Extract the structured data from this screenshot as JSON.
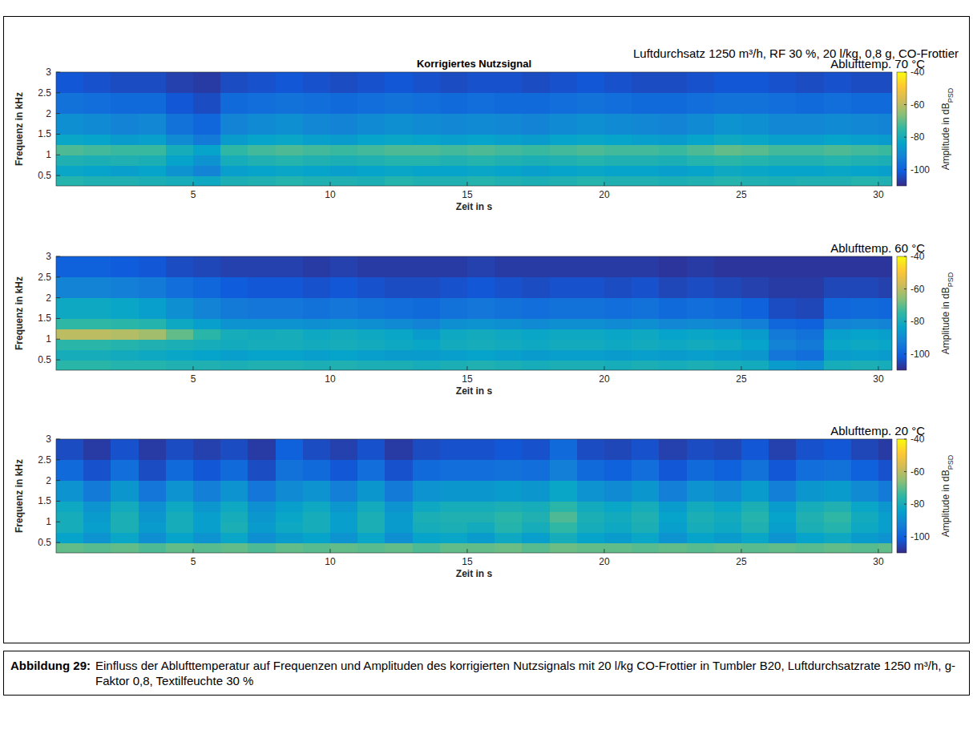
{
  "annotation": "Luftdurchsatz 1250 m³/h, RF 30 %, 20 l/kg, 0,8 g, CO-Frottier",
  "caption": {
    "label": "Abbildung 29:",
    "text": "Einfluss der Ablufttemperatur auf Frequenzen und Amplituden des korrigierten Nutzsignals mit 20 l/kg CO-Frottier in Tumbler B20, Luftdurchsatzrate 1250 m³/h, g-Faktor 0,8, Textil­feuchte 30 %"
  },
  "chart_data": [
    {
      "type": "heatmap",
      "title": "Korrigiertes Nutzsignal",
      "subtitle": "Ablufttemp. 70 °C",
      "x_label": "Zeit in s",
      "y_label": "Frequenz in kHz",
      "xlim": [
        0,
        30.5
      ],
      "ylim": [
        0.25,
        3
      ],
      "xticks": [
        5,
        10,
        15,
        20,
        25,
        30
      ],
      "yticks": [
        0.5,
        1,
        1.5,
        2,
        2.5,
        3
      ],
      "x_bins": [
        0,
        1,
        2,
        3,
        4,
        5,
        6,
        7,
        8,
        9,
        10,
        11,
        12,
        13,
        14,
        15,
        16,
        17,
        18,
        19,
        20,
        21,
        22,
        23,
        24,
        25,
        26,
        27,
        28,
        29,
        30,
        30.5
      ],
      "y_bins": [
        0.25,
        0.5,
        0.75,
        1.0,
        1.25,
        1.5,
        2.0,
        2.5,
        3.0
      ],
      "values": [
        [
          -77,
          -78,
          -78,
          -79,
          -80,
          -82,
          -79,
          -78,
          -77,
          -78,
          -78,
          -79,
          -77,
          -78,
          -78,
          -77,
          -78,
          -79,
          -78,
          -77,
          -78,
          -78,
          -79,
          -78,
          -77,
          -78,
          -79,
          -78,
          -78,
          -77,
          -78
        ],
        [
          -83,
          -84,
          -85,
          -84,
          -88,
          -92,
          -85,
          -84,
          -83,
          -84,
          -85,
          -84,
          -83,
          -84,
          -84,
          -83,
          -84,
          -85,
          -84,
          -83,
          -84,
          -84,
          -85,
          -84,
          -82,
          -83,
          -84,
          -84,
          -83,
          -84,
          -85
        ],
        [
          -78,
          -79,
          -78,
          -79,
          -84,
          -88,
          -80,
          -78,
          -77,
          -78,
          -79,
          -78,
          -77,
          -77,
          -78,
          -77,
          -78,
          -79,
          -78,
          -77,
          -78,
          -78,
          -79,
          -77,
          -76,
          -77,
          -78,
          -78,
          -77,
          -78,
          -79
        ],
        [
          -72,
          -73,
          -74,
          -74,
          -80,
          -84,
          -75,
          -73,
          -72,
          -73,
          -74,
          -73,
          -72,
          -72,
          -73,
          -72,
          -73,
          -74,
          -73,
          -72,
          -73,
          -73,
          -74,
          -72,
          -70,
          -71,
          -73,
          -73,
          -72,
          -73,
          -74
        ],
        [
          -83,
          -84,
          -86,
          -85,
          -90,
          -94,
          -86,
          -84,
          -83,
          -85,
          -86,
          -84,
          -83,
          -84,
          -85,
          -84,
          -85,
          -86,
          -84,
          -83,
          -84,
          -85,
          -86,
          -84,
          -82,
          -83,
          -85,
          -85,
          -84,
          -85,
          -86
        ],
        [
          -89,
          -90,
          -92,
          -91,
          -96,
          -99,
          -92,
          -90,
          -89,
          -91,
          -92,
          -90,
          -89,
          -90,
          -91,
          -90,
          -91,
          -92,
          -90,
          -89,
          -90,
          -91,
          -92,
          -90,
          -88,
          -89,
          -91,
          -91,
          -90,
          -91,
          -92
        ],
        [
          -96,
          -97,
          -98,
          -98,
          -102,
          -104,
          -98,
          -97,
          -96,
          -97,
          -98,
          -97,
          -96,
          -97,
          -98,
          -97,
          -98,
          -98,
          -97,
          -96,
          -97,
          -98,
          -98,
          -97,
          -96,
          -96,
          -97,
          -98,
          -97,
          -98,
          -98
        ],
        [
          -102,
          -103,
          -104,
          -104,
          -106,
          -107,
          -104,
          -103,
          -102,
          -103,
          -104,
          -103,
          -102,
          -103,
          -104,
          -103,
          -103,
          -104,
          -103,
          -102,
          -103,
          -104,
          -104,
          -103,
          -102,
          -102,
          -103,
          -104,
          -103,
          -104,
          -104
        ]
      ],
      "colorbar": {
        "range": [
          -110,
          -40
        ],
        "ticks": [
          -40,
          -60,
          -80,
          -100
        ],
        "label": "Amplitude in dB",
        "label_subscript": "PSD"
      }
    },
    {
      "type": "heatmap",
      "subtitle": "Ablufttemp. 60 °C",
      "x_label": "Zeit in s",
      "y_label": "Frequenz in kHz",
      "xlim": [
        0,
        30.5
      ],
      "ylim": [
        0.25,
        3
      ],
      "xticks": [
        5,
        10,
        15,
        20,
        25,
        30
      ],
      "yticks": [
        0.5,
        1,
        1.5,
        2,
        2.5,
        3
      ],
      "x_bins": [
        0,
        1,
        2,
        3,
        4,
        5,
        6,
        7,
        8,
        9,
        10,
        11,
        12,
        13,
        14,
        15,
        16,
        17,
        18,
        19,
        20,
        21,
        22,
        23,
        24,
        25,
        26,
        27,
        28,
        29,
        30,
        30.5
      ],
      "y_bins": [
        0.25,
        0.5,
        0.75,
        1.0,
        1.25,
        1.5,
        2.0,
        2.5,
        3.0
      ],
      "values": [
        [
          -76,
          -76,
          -77,
          -77,
          -78,
          -78,
          -79,
          -78,
          -78,
          -79,
          -78,
          -79,
          -79,
          -80,
          -79,
          -78,
          -79,
          -80,
          -79,
          -79,
          -80,
          -79,
          -80,
          -79,
          -80,
          -81,
          -86,
          -88,
          -80,
          -79,
          -80
        ],
        [
          -80,
          -80,
          -81,
          -82,
          -83,
          -84,
          -85,
          -84,
          -84,
          -85,
          -84,
          -85,
          -86,
          -86,
          -85,
          -84,
          -85,
          -86,
          -85,
          -85,
          -86,
          -85,
          -86,
          -85,
          -86,
          -87,
          -95,
          -97,
          -86,
          -85,
          -86
        ],
        [
          -76,
          -76,
          -77,
          -78,
          -79,
          -80,
          -81,
          -80,
          -80,
          -81,
          -80,
          -81,
          -82,
          -83,
          -81,
          -80,
          -81,
          -82,
          -81,
          -81,
          -82,
          -81,
          -82,
          -81,
          -82,
          -84,
          -92,
          -94,
          -83,
          -82,
          -83
        ],
        [
          -60,
          -60,
          -61,
          -63,
          -70,
          -76,
          -80,
          -81,
          -80,
          -82,
          -81,
          -82,
          -83,
          -86,
          -82,
          -81,
          -82,
          -83,
          -82,
          -82,
          -83,
          -82,
          -84,
          -83,
          -84,
          -86,
          -94,
          -96,
          -85,
          -84,
          -85
        ],
        [
          -75,
          -75,
          -76,
          -77,
          -82,
          -85,
          -88,
          -88,
          -88,
          -89,
          -88,
          -89,
          -90,
          -92,
          -89,
          -88,
          -89,
          -90,
          -89,
          -89,
          -90,
          -89,
          -91,
          -90,
          -91,
          -93,
          -99,
          -100,
          -92,
          -91,
          -92
        ],
        [
          -82,
          -82,
          -83,
          -85,
          -89,
          -92,
          -94,
          -95,
          -95,
          -96,
          -95,
          -96,
          -97,
          -98,
          -96,
          -95,
          -96,
          -97,
          -96,
          -96,
          -97,
          -96,
          -98,
          -97,
          -98,
          -100,
          -104,
          -105,
          -99,
          -98,
          -99
        ],
        [
          -92,
          -92,
          -93,
          -94,
          -97,
          -99,
          -101,
          -102,
          -102,
          -103,
          -102,
          -103,
          -104,
          -104,
          -103,
          -102,
          -103,
          -104,
          -103,
          -103,
          -104,
          -103,
          -105,
          -104,
          -105,
          -106,
          -107,
          -107,
          -105,
          -105,
          -106
        ],
        [
          -100,
          -100,
          -101,
          -102,
          -104,
          -105,
          -106,
          -106,
          -106,
          -107,
          -106,
          -107,
          -107,
          -107,
          -107,
          -106,
          -107,
          -107,
          -107,
          -107,
          -107,
          -107,
          -108,
          -107,
          -108,
          -108,
          -108,
          -108,
          -108,
          -108,
          -108
        ]
      ],
      "colorbar": {
        "range": [
          -110,
          -40
        ],
        "ticks": [
          -40,
          -60,
          -80,
          -100
        ],
        "label": "Amplitude in dB",
        "label_subscript": "PSD"
      }
    },
    {
      "type": "heatmap",
      "subtitle": "Ablufttemp. 20 °C",
      "x_label": "Zeit in s",
      "y_label": "Frequenz in kHz",
      "xlim": [
        0,
        30.5
      ],
      "ylim": [
        0.25,
        3
      ],
      "xticks": [
        5,
        10,
        15,
        20,
        25,
        30
      ],
      "yticks": [
        0.5,
        1,
        1.5,
        2,
        2.5,
        3
      ],
      "x_bins": [
        0,
        1,
        2,
        3,
        4,
        5,
        6,
        7,
        8,
        9,
        10,
        11,
        12,
        13,
        14,
        15,
        16,
        17,
        18,
        19,
        20,
        21,
        22,
        23,
        24,
        25,
        26,
        27,
        28,
        29,
        30,
        30.5
      ],
      "y_bins": [
        0.25,
        0.5,
        0.75,
        1.0,
        1.25,
        1.5,
        2.0,
        2.5,
        3.0
      ],
      "values": [
        [
          -70,
          -71,
          -70,
          -72,
          -70,
          -71,
          -70,
          -72,
          -70,
          -71,
          -70,
          -71,
          -70,
          -72,
          -70,
          -70,
          -69,
          -71,
          -69,
          -70,
          -70,
          -71,
          -70,
          -71,
          -70,
          -71,
          -70,
          -71,
          -70,
          -71,
          -70
        ],
        [
          -84,
          -88,
          -83,
          -89,
          -84,
          -88,
          -83,
          -89,
          -86,
          -84,
          -88,
          -83,
          -89,
          -84,
          -83,
          -86,
          -82,
          -85,
          -80,
          -84,
          -86,
          -83,
          -88,
          -84,
          -86,
          -83,
          -88,
          -84,
          -82,
          -86,
          -88
        ],
        [
          -80,
          -85,
          -79,
          -86,
          -80,
          -85,
          -79,
          -86,
          -82,
          -80,
          -85,
          -79,
          -86,
          -80,
          -79,
          -81,
          -77,
          -80,
          -75,
          -80,
          -82,
          -79,
          -85,
          -80,
          -82,
          -78,
          -85,
          -79,
          -77,
          -82,
          -85
        ],
        [
          -80,
          -86,
          -79,
          -87,
          -80,
          -85,
          -80,
          -87,
          -83,
          -80,
          -85,
          -79,
          -86,
          -79,
          -78,
          -78,
          -76,
          -78,
          -72,
          -79,
          -81,
          -78,
          -84,
          -79,
          -81,
          -77,
          -84,
          -78,
          -75,
          -81,
          -85
        ],
        [
          -82,
          -88,
          -81,
          -89,
          -82,
          -87,
          -82,
          -89,
          -85,
          -82,
          -87,
          -81,
          -88,
          -82,
          -80,
          -80,
          -79,
          -80,
          -76,
          -81,
          -83,
          -80,
          -86,
          -81,
          -83,
          -79,
          -86,
          -80,
          -78,
          -83,
          -87
        ],
        [
          -88,
          -94,
          -87,
          -95,
          -88,
          -93,
          -88,
          -95,
          -90,
          -88,
          -93,
          -87,
          -94,
          -88,
          -87,
          -87,
          -86,
          -87,
          -83,
          -88,
          -90,
          -87,
          -93,
          -88,
          -90,
          -86,
          -93,
          -87,
          -86,
          -90,
          -94
        ],
        [
          -98,
          -103,
          -97,
          -104,
          -98,
          -102,
          -98,
          -104,
          -96,
          -98,
          -102,
          -97,
          -103,
          -98,
          -97,
          -97,
          -96,
          -97,
          -93,
          -98,
          -100,
          -97,
          -102,
          -98,
          -100,
          -96,
          -102,
          -97,
          -96,
          -100,
          -103
        ],
        [
          -104,
          -107,
          -103,
          -107,
          -104,
          -106,
          -104,
          -107,
          -100,
          -104,
          -106,
          -103,
          -107,
          -104,
          -103,
          -103,
          -102,
          -103,
          -98,
          -104,
          -105,
          -103,
          -106,
          -104,
          -105,
          -102,
          -106,
          -103,
          -102,
          -105,
          -107
        ]
      ],
      "colorbar": {
        "range": [
          -110,
          -40
        ],
        "ticks": [
          -40,
          -60,
          -80,
          -100
        ],
        "label": "Amplitude in dB",
        "label_subscript": "PSD"
      }
    }
  ]
}
